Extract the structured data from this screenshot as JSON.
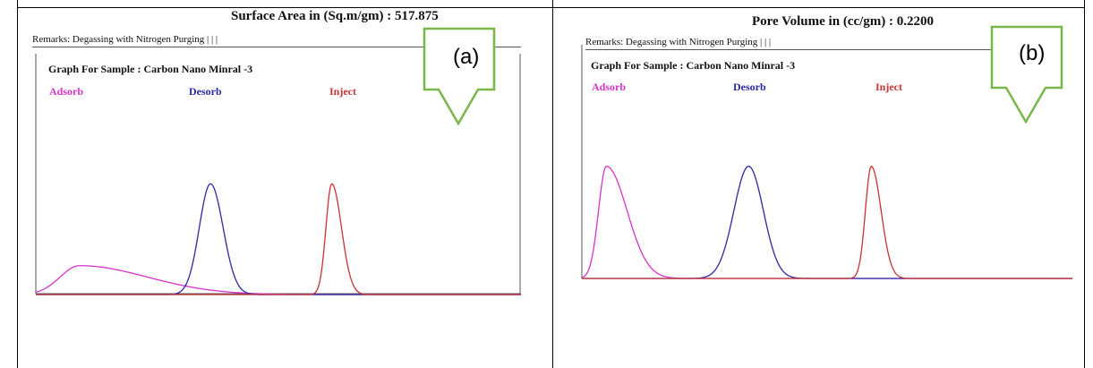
{
  "panels": [
    {
      "id": "a",
      "metric_label": "Surface Area in (Sq.m/gm) : 517.875",
      "remarks": "Remarks: Degassing with Nitrogen Purging | | |",
      "graph_title": "Graph For Sample : Carbon Nano Minral -3",
      "callout": "(a)",
      "legend": [
        {
          "name": "Adsorb",
          "color": "#d633cc"
        },
        {
          "name": "Desorb",
          "color": "#2a2aa6"
        },
        {
          "name": "Inject",
          "color": "#c83232"
        }
      ]
    },
    {
      "id": "b",
      "metric_label": "Pore Volume in  (cc/gm) : 0.2200",
      "remarks": "Remarks: Degassing with Nitrogen Purging | | |",
      "graph_title": "Graph For Sample : Carbon Nano Minral -3",
      "callout": "(b)",
      "legend": [
        {
          "name": "Adsorb",
          "color": "#d633cc"
        },
        {
          "name": "Desorb",
          "color": "#2a2aa6"
        },
        {
          "name": "Inject",
          "color": "#c83232"
        }
      ]
    }
  ],
  "chart_data": [
    {
      "type": "line",
      "xlim": [
        0,
        100
      ],
      "ylim": [
        0,
        1
      ],
      "grid": false,
      "legend_placement": "top",
      "series": [
        {
          "name": "Adsorb",
          "color": "#d633cc",
          "peaks": [
            {
              "center": 9,
              "height": 0.12,
              "rise": 4,
              "fall": 14
            }
          ]
        },
        {
          "name": "Desorb",
          "color": "#2a2aa6",
          "peaks": [
            {
              "center": 36,
              "height": 0.46,
              "rise": 2.3,
              "fall": 2.6
            }
          ]
        },
        {
          "name": "Inject",
          "color": "#c83232",
          "peaks": [
            {
              "center": 61,
              "height": 0.46,
              "rise": 1.2,
              "fall": 2.0
            }
          ]
        }
      ]
    },
    {
      "type": "line",
      "xlim": [
        0,
        100
      ],
      "ylim": [
        0,
        1
      ],
      "grid": false,
      "legend_placement": "top",
      "series": [
        {
          "name": "Adsorb",
          "color": "#d633cc",
          "peaks": [
            {
              "center": 5,
              "height": 0.48,
              "rise": 1.6,
              "fall": 4.2
            }
          ]
        },
        {
          "name": "Desorb",
          "color": "#2a2aa6",
          "peaks": [
            {
              "center": 34,
              "height": 0.48,
              "rise": 3.0,
              "fall": 3.0
            }
          ]
        },
        {
          "name": "Inject",
          "color": "#c83232",
          "peaks": [
            {
              "center": 59,
              "height": 0.48,
              "rise": 1.2,
              "fall": 2.0
            }
          ]
        }
      ]
    }
  ]
}
